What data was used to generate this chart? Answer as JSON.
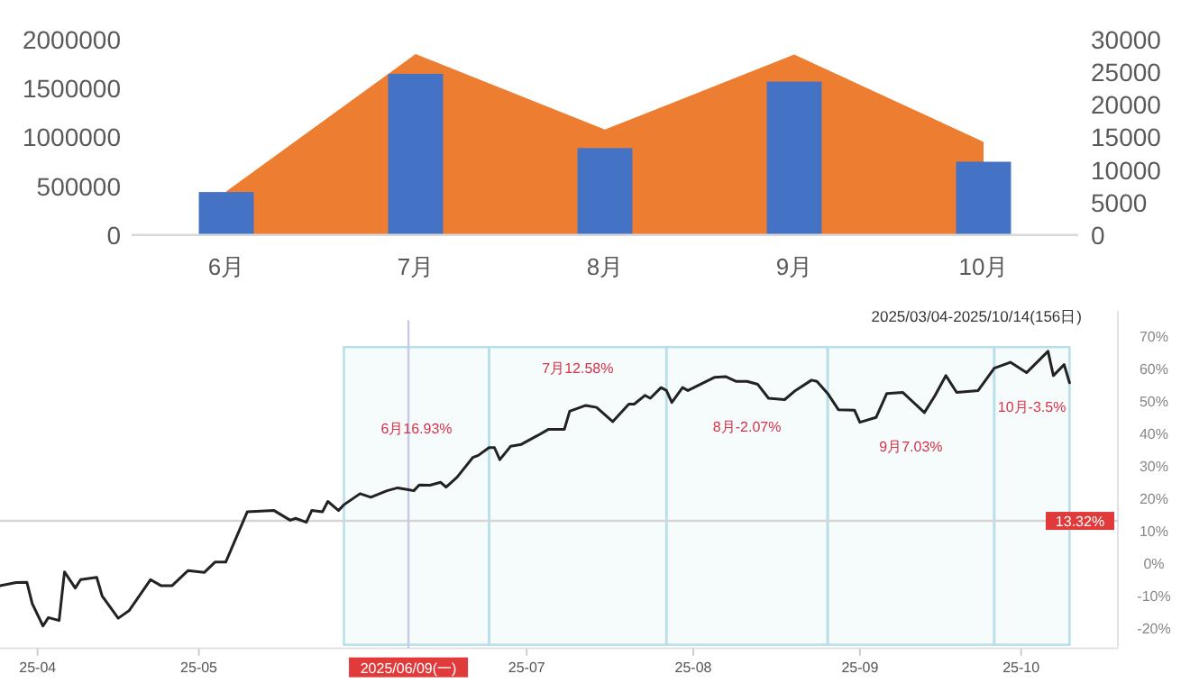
{
  "chart_data": [
    {
      "type": "bar",
      "categories": [
        "6月",
        "7月",
        "8月",
        "9月",
        "10月"
      ],
      "series": [
        {
          "type": "area",
          "axis": "y2",
          "color": "#ed7d31",
          "values": [
            6700,
            27800,
            16200,
            27700,
            14300
          ]
        },
        {
          "type": "bar",
          "color": "#4472c4",
          "values": [
            440000,
            1650000,
            890000,
            1570000,
            750000
          ]
        }
      ],
      "ylim": [
        0,
        2000000
      ],
      "yticks": [
        0,
        500000,
        1000000,
        1500000,
        2000000
      ],
      "y2lim": [
        0,
        30000
      ],
      "y2ticks": [
        0,
        5000,
        10000,
        15000,
        20000,
        25000,
        30000
      ]
    },
    {
      "type": "line",
      "title": "2025/03/04-2025/10/14(156日)",
      "series": [
        {
          "color": "#222222",
          "x": [
            "2025-03-25",
            "2025-03-28",
            "2025-03-30",
            "2025-03-31",
            "2025-04-02",
            "2025-04-03",
            "2025-04-05",
            "2025-04-06",
            "2025-04-08",
            "2025-04-09",
            "2025-04-12",
            "2025-04-13",
            "2025-04-16",
            "2025-04-18",
            "2025-04-22",
            "2025-04-24",
            "2025-04-26",
            "2025-04-29",
            "2025-05-02",
            "2025-05-04",
            "2025-05-06",
            "2025-05-10",
            "2025-05-15",
            "2025-05-18",
            "2025-05-19",
            "2025-05-21",
            "2025-05-22",
            "2025-05-24",
            "2025-05-25",
            "2025-05-27",
            "2025-05-28",
            "2025-05-31",
            "2025-06-02",
            "2025-06-05",
            "2025-06-07",
            "2025-06-09",
            "2025-06-10",
            "2025-06-11",
            "2025-06-13",
            "2025-06-15",
            "2025-06-16",
            "2025-06-18",
            "2025-06-21",
            "2025-06-22",
            "2025-06-24",
            "2025-06-25",
            "2025-06-26",
            "2025-06-28",
            "2025-06-30",
            "2025-07-03",
            "2025-07-05",
            "2025-07-08",
            "2025-07-09",
            "2025-07-12",
            "2025-07-14",
            "2025-07-17",
            "2025-07-20",
            "2025-07-21",
            "2025-07-23",
            "2025-07-24",
            "2025-07-26",
            "2025-07-27",
            "2025-07-28",
            "2025-07-30",
            "2025-07-31",
            "2025-08-05",
            "2025-08-07",
            "2025-08-09",
            "2025-08-11",
            "2025-08-13",
            "2025-08-15",
            "2025-08-18",
            "2025-08-20",
            "2025-08-23",
            "2025-08-24",
            "2025-08-26",
            "2025-08-28",
            "2025-08-31",
            "2025-09-01",
            "2025-09-04",
            "2025-09-06",
            "2025-09-09",
            "2025-09-13",
            "2025-09-15",
            "2025-09-17",
            "2025-09-19",
            "2025-09-23",
            "2025-09-26",
            "2025-09-29",
            "2025-10-02",
            "2025-10-06",
            "2025-10-07",
            "2025-10-09",
            "2025-10-10"
          ],
          "values": [
            -6.7,
            -5.7,
            -5.6,
            -12.2,
            -19.1,
            -16.5,
            -17.4,
            -2.4,
            -7.4,
            -4.8,
            -4.1,
            -9.8,
            -16.7,
            -14.4,
            -4.8,
            -6.7,
            -6.7,
            -2,
            -2.6,
            0.6,
            0.6,
            16.1,
            16.5,
            13.5,
            14.1,
            12.9,
            16.5,
            16.1,
            19.3,
            16.5,
            18.3,
            21.7,
            20.6,
            22.6,
            23.5,
            22.9,
            22.6,
            24.4,
            24.3,
            25.2,
            23.7,
            26.7,
            32.9,
            33.5,
            35.9,
            35.9,
            32.2,
            36.3,
            36.9,
            39.6,
            41.5,
            41.5,
            47.1,
            48.9,
            48.3,
            43.9,
            49.3,
            49.3,
            52,
            51.1,
            54.4,
            53.5,
            49.8,
            54.4,
            53.5,
            57.6,
            57.8,
            56.3,
            56.3,
            55.4,
            51.1,
            50.7,
            53.5,
            56.7,
            56.3,
            52.6,
            47.6,
            47.4,
            43.7,
            45.2,
            52.6,
            52.9,
            46.7,
            52,
            58.1,
            52.9,
            53.5,
            60.4,
            62.2,
            59,
            65.6,
            58.1,
            61.5,
            55.9
          ]
        }
      ],
      "xlim": [
        "2025-03-25",
        "2025-10-19"
      ],
      "xticks": [
        {
          "value": "2025-04-01",
          "label": "25-04"
        },
        {
          "value": "2025-05-01",
          "label": "25-05"
        },
        {
          "value": "2025-07-01",
          "label": "25-07"
        },
        {
          "value": "2025-08-01",
          "label": "25-08"
        },
        {
          "value": "2025-09-01",
          "label": "25-09"
        },
        {
          "value": "2025-10-01",
          "label": "25-10"
        }
      ],
      "ylim": [
        -26,
        78
      ],
      "yticks": [
        {
          "value": -20,
          "label": "-20%"
        },
        {
          "value": -10,
          "label": "-10%"
        },
        {
          "value": 0,
          "label": "0%"
        },
        {
          "value": 10,
          "label": "10%"
        },
        {
          "value": 20,
          "label": "20%"
        },
        {
          "value": 30,
          "label": "30%"
        },
        {
          "value": 40,
          "label": "40%"
        },
        {
          "value": 50,
          "label": "50%"
        },
        {
          "value": 60,
          "label": "60%"
        },
        {
          "value": 70,
          "label": "70%"
        }
      ],
      "ref_lines": [
        {
          "axis": "y",
          "value": 13.32,
          "label": "13.32%",
          "color": "#d5d5d5"
        },
        {
          "axis": "x",
          "value": "2025-06-09",
          "label": "2025/06/09(一)",
          "color": "#c9c9e3"
        }
      ],
      "bands": [
        {
          "axis": "x",
          "from": "2025-05-28",
          "to": "2025-06-24",
          "label": "6月16.93%",
          "color": "#b9e0e8"
        },
        {
          "axis": "x",
          "from": "2025-06-24",
          "to": "2025-07-27",
          "label": "7月12.58%",
          "color": "#b9e0e8"
        },
        {
          "axis": "x",
          "from": "2025-07-27",
          "to": "2025-08-26",
          "label": "8月-2.07%",
          "color": "#b9e0e8"
        },
        {
          "axis": "x",
          "from": "2025-08-26",
          "to": "2025-09-26",
          "label": "9月7.03%",
          "color": "#b9e0e8"
        },
        {
          "axis": "x",
          "from": "2025-09-26",
          "to": "2025-10-10",
          "label": "10月-3.5%",
          "color": "#b9e0e8"
        }
      ]
    }
  ]
}
